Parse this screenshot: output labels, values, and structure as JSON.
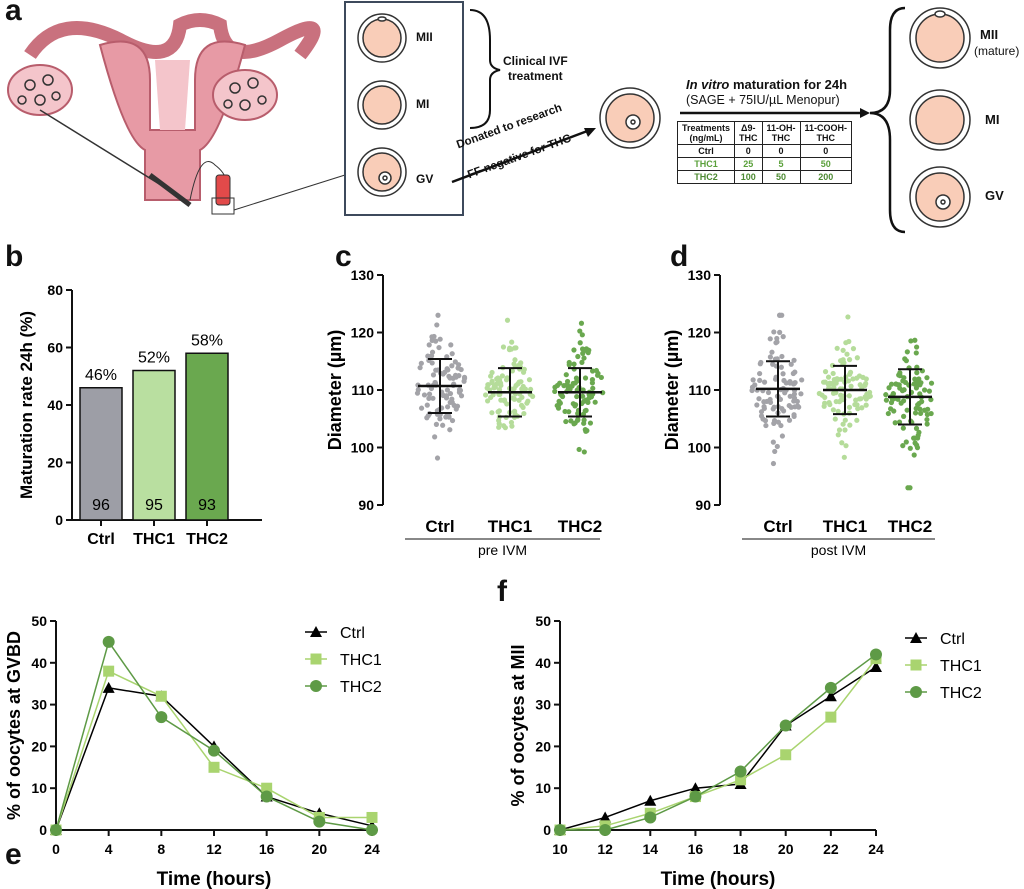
{
  "panel_labels": {
    "a": "a",
    "b": "b",
    "c": "c",
    "d": "d",
    "e": "e",
    "f": "f"
  },
  "panel_a": {
    "box_labels": [
      "MII",
      "MI",
      "GV"
    ],
    "clinical": [
      "Clinical IVF",
      "treatment"
    ],
    "donated": "Donated to research",
    "ff_negative": "FF negative for THC",
    "ivm_italic": "In vitro",
    "ivm_rest": " maturation for 24h",
    "medium": "(SAGE + 75IU/µL Menopur)",
    "outcome_labels": [
      "MII",
      "MI",
      "GV"
    ],
    "mature": "(mature)",
    "table": {
      "headers": [
        [
          "Treatments",
          "(ng/mL)"
        ],
        [
          "Δ9-",
          "THC"
        ],
        [
          "11-OH-",
          "THC"
        ],
        [
          "11-COOH-",
          "THC"
        ]
      ],
      "rows": [
        [
          "Ctrl",
          "0",
          "0",
          "0"
        ],
        [
          "THC1",
          "25",
          "5",
          "50"
        ],
        [
          "THC2",
          "100",
          "50",
          "200"
        ]
      ]
    },
    "colors": {
      "uterus": "#e79aa5",
      "uterus_light": "#f4c5cb",
      "oocyte": "#f9cdb8",
      "box": "#3d4a5c"
    }
  },
  "chart_data": [
    {
      "id": "b",
      "type": "bar",
      "categories": [
        "Ctrl",
        "THC1",
        "THC2"
      ],
      "values": [
        46,
        52,
        58
      ],
      "value_labels": [
        "46%",
        "52%",
        "58%"
      ],
      "n_labels": [
        "96",
        "95",
        "93"
      ],
      "ylabel": "Maturation rate 24h (%)",
      "ylim": [
        0,
        80
      ],
      "yticks": [
        0,
        20,
        40,
        60,
        80
      ],
      "colors": [
        "#9d9ea6",
        "#b9dfa0",
        "#6aa84f"
      ]
    },
    {
      "id": "c",
      "type": "scatter",
      "categories": [
        "Ctrl",
        "THC1",
        "THC2"
      ],
      "group_label": "pre IVM",
      "ylabel": "Diameter (µm)",
      "ylim": [
        90,
        130
      ],
      "yticks": [
        90,
        100,
        110,
        120,
        130
      ],
      "series": [
        {
          "name": "Ctrl",
          "mean": 110.7,
          "sd": 4.7,
          "n": 96,
          "color": "#a3a3a8"
        },
        {
          "name": "THC1",
          "mean": 109.6,
          "sd": 4.2,
          "n": 95,
          "color": "#b5dc9a"
        },
        {
          "name": "THC2",
          "mean": 109.6,
          "sd": 4.2,
          "n": 93,
          "color": "#6aa84f"
        }
      ]
    },
    {
      "id": "d",
      "type": "scatter",
      "categories": [
        "Ctrl",
        "THC1",
        "THC2"
      ],
      "group_label": "post IVM",
      "ylabel": "Diameter (µm)",
      "ylim": [
        90,
        130
      ],
      "yticks": [
        90,
        100,
        110,
        120,
        130
      ],
      "series": [
        {
          "name": "Ctrl",
          "mean": 110.2,
          "sd": 4.8,
          "n": 96,
          "color": "#a3a3a8"
        },
        {
          "name": "THC1",
          "mean": 110.0,
          "sd": 4.2,
          "n": 95,
          "color": "#b5dc9a"
        },
        {
          "name": "THC2",
          "mean": 108.8,
          "sd": 4.8,
          "n": 93,
          "color": "#6aa84f"
        }
      ]
    },
    {
      "id": "e",
      "type": "line",
      "x": [
        0,
        4,
        8,
        12,
        16,
        20,
        24
      ],
      "xlabel": "Time  (hours)",
      "ylabel": "% of oocytes at GVBD",
      "ylim": [
        0,
        50
      ],
      "yticks": [
        0,
        10,
        20,
        30,
        40,
        50
      ],
      "xlim": [
        0,
        24
      ],
      "series": [
        {
          "name": "Ctrl",
          "values": [
            0,
            34,
            32,
            20,
            8,
            4,
            1
          ],
          "color": "#000000",
          "marker": "triangle"
        },
        {
          "name": "THC1",
          "values": [
            0,
            38,
            32,
            15,
            10,
            3,
            3
          ],
          "color": "#a9d46f",
          "marker": "square"
        },
        {
          "name": "THC2",
          "values": [
            0,
            45,
            27,
            19,
            8,
            2,
            0
          ],
          "color": "#5e9a46",
          "marker": "circle"
        }
      ],
      "legend": "top-right"
    },
    {
      "id": "f",
      "type": "line",
      "x": [
        10,
        12,
        14,
        16,
        18,
        20,
        22,
        24
      ],
      "xlabel": "Time  (hours)",
      "ylabel": "% of oocytes at MII",
      "ylim": [
        0,
        50
      ],
      "yticks": [
        0,
        10,
        20,
        30,
        40,
        50
      ],
      "xlim": [
        10,
        24
      ],
      "series": [
        {
          "name": "Ctrl",
          "values": [
            0,
            3,
            7,
            10,
            11,
            25,
            32,
            39
          ],
          "color": "#000000",
          "marker": "triangle"
        },
        {
          "name": "THC1",
          "values": [
            0,
            1,
            4,
            8,
            12,
            18,
            27,
            41
          ],
          "color": "#a9d46f",
          "marker": "square"
        },
        {
          "name": "THC2",
          "values": [
            0,
            0,
            3,
            8,
            14,
            25,
            34,
            42
          ],
          "color": "#5e9a46",
          "marker": "circle"
        }
      ],
      "legend": "top-right"
    }
  ]
}
